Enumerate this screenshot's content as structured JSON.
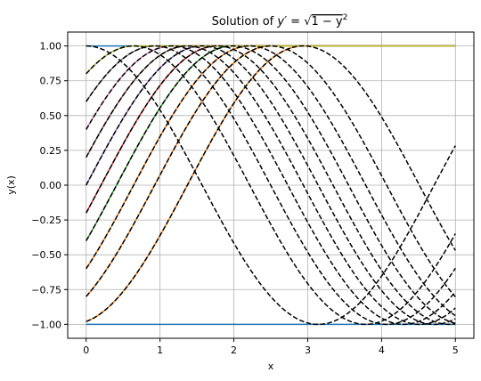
{
  "chart_data": {
    "type": "line",
    "title_prefix": "Solution of ",
    "title_math": {
      "lhs": "y′ = ",
      "radicand_one": "1 − y",
      "exponent": "2"
    },
    "xlabel": "x",
    "ylabel": "y(x)",
    "xlim": [
      -0.25,
      5.25
    ],
    "ylim": [
      -1.1,
      1.1
    ],
    "xticks": [
      0,
      1,
      2,
      3,
      4,
      5
    ],
    "xtick_labels": [
      "0",
      "1",
      "2",
      "3",
      "4",
      "5"
    ],
    "yticks": [
      -1.0,
      -0.75,
      -0.5,
      -0.25,
      0.0,
      0.25,
      0.5,
      0.75,
      1.0
    ],
    "ytick_labels": [
      "−1.00",
      "−0.75",
      "−0.50",
      "−0.25",
      "0.00",
      "0.25",
      "0.50",
      "0.75",
      "1.00"
    ],
    "grid": true,
    "x_range": [
      0,
      5
    ],
    "equilibria": [
      {
        "y": 1.0,
        "color": "#1f77b4"
      },
      {
        "y": -1.0,
        "color": "#1f77b4"
      }
    ],
    "numeric_solutions": {
      "initial_values": [
        -0.98,
        -0.8,
        -0.6,
        -0.4,
        -0.2,
        0.0,
        0.2,
        0.4,
        0.6,
        0.8
      ],
      "colors": [
        "#ff7f0e",
        "#ff7f0e",
        "#ff7f0e",
        "#2ca02c",
        "#d62728",
        "#9467bd",
        "#8c564b",
        "#e377c2",
        "#7f7f7f",
        "#bcbd22"
      ],
      "saturates_at": 1.0
    },
    "analytic_solutions": {
      "formula": "sin(x + asin(y0))",
      "initial_values": [
        -0.98,
        -0.8,
        -0.6,
        -0.4,
        -0.2,
        0.0,
        0.2,
        0.4,
        0.6,
        0.8,
        1.0
      ],
      "color": "#000000",
      "style": "dashed"
    }
  }
}
